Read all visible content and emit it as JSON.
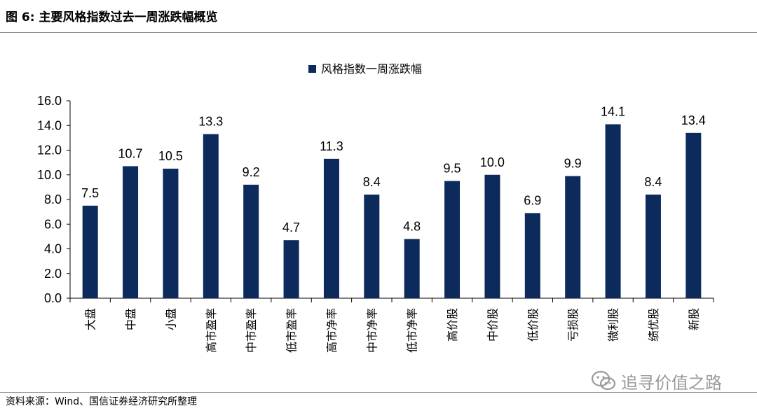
{
  "header": {
    "figure_label": "图 6:",
    "title": "主要风格指数过去一周涨跌幅概览"
  },
  "footer": {
    "source": "资料来源：Wind、国信证券经济研究所整理"
  },
  "watermark": {
    "text": "追寻价值之路",
    "icon": "wechat-icon"
  },
  "colors": {
    "bar": "#0d2a5c",
    "axis": "#000000",
    "rule": "#8a8a8a"
  },
  "chart_data": {
    "type": "bar",
    "legend": {
      "entries": [
        "风格指数一周涨跌幅"
      ],
      "position": "top-center"
    },
    "categories": [
      "大盘",
      "中盘",
      "小盘",
      "高市盈率",
      "中市盈率",
      "低市盈率",
      "高市净率",
      "中市净率",
      "低市净率",
      "高价股",
      "中价股",
      "低价股",
      "亏损股",
      "微利股",
      "绩优股",
      "新股"
    ],
    "series": [
      {
        "name": "风格指数一周涨跌幅",
        "values": [
          7.5,
          10.7,
          10.5,
          13.3,
          9.2,
          4.7,
          11.3,
          8.4,
          4.8,
          9.5,
          10.0,
          6.9,
          9.9,
          14.1,
          8.4,
          13.4
        ]
      }
    ],
    "ylim": [
      0,
      16
    ],
    "yticks": [
      "0.0",
      "2.0",
      "4.0",
      "6.0",
      "8.0",
      "10.0",
      "12.0",
      "14.0",
      "16.0"
    ],
    "data_labels": [
      "7.5",
      "10.7",
      "10.5",
      "13.3",
      "9.2",
      "4.7",
      "11.3",
      "8.4",
      "4.8",
      "9.5",
      "10.0",
      "6.9",
      "9.9",
      "14.1",
      "8.4",
      "13.4"
    ],
    "grid": false
  }
}
